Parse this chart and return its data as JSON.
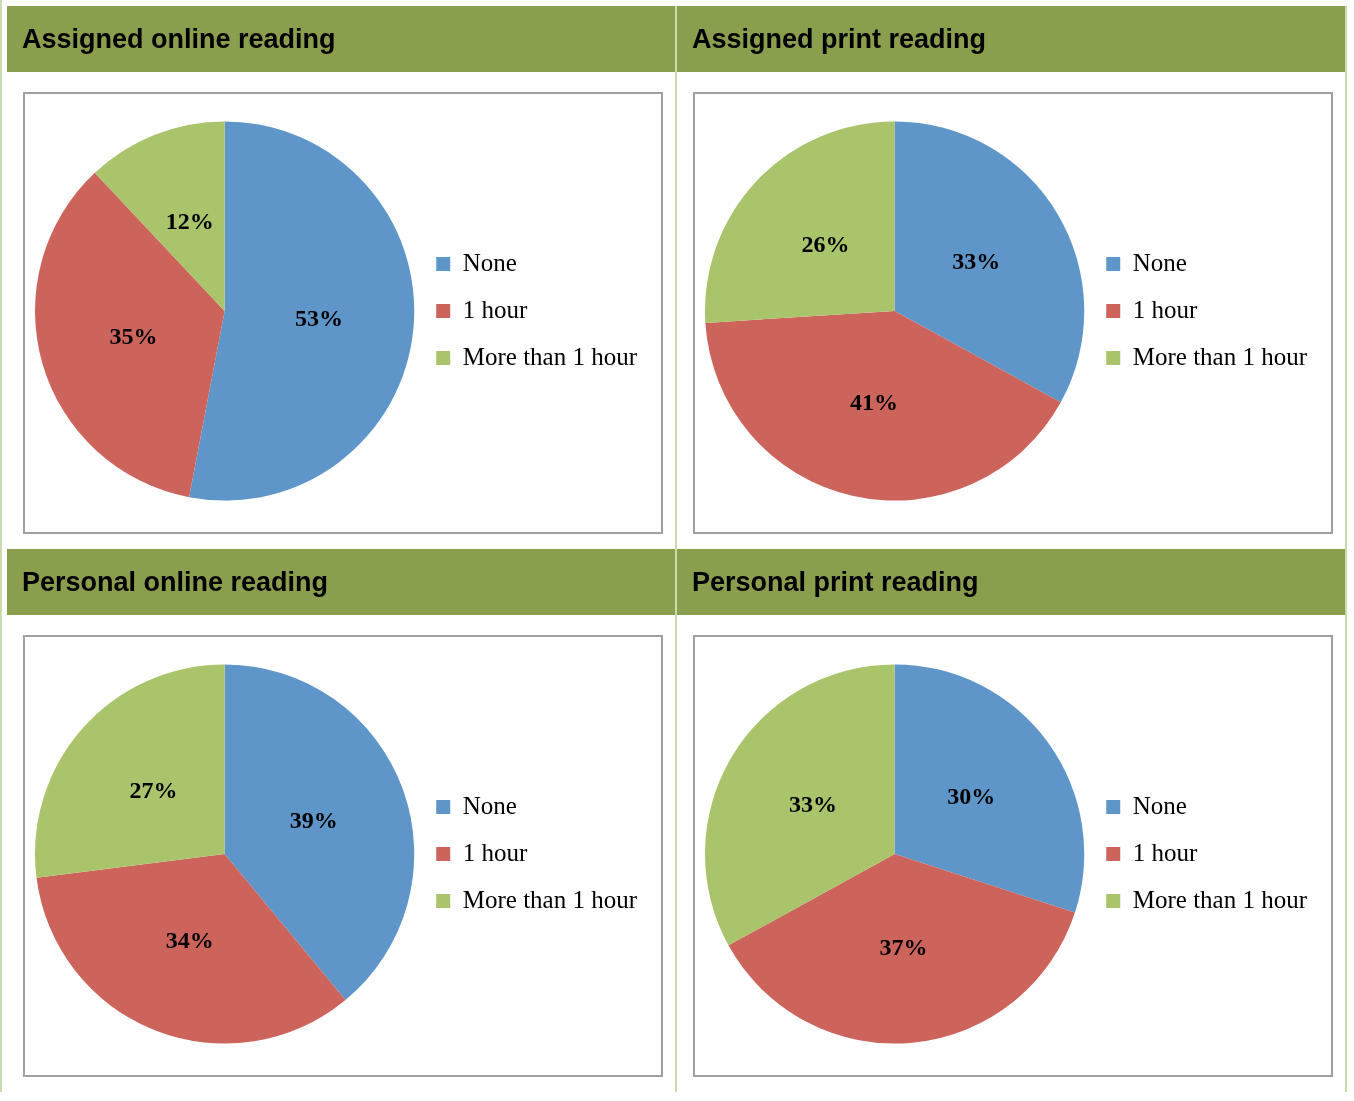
{
  "chart_data": [
    {
      "type": "pie",
      "title": "Assigned online reading",
      "categories": [
        "None",
        "1 hour",
        "More than 1 hour"
      ],
      "values": [
        53,
        35,
        12
      ],
      "value_labels": [
        "53%",
        "35%",
        "12%"
      ],
      "colors": [
        "#5f96c9",
        "#cd645c",
        "#a9c46a"
      ],
      "legend": "right"
    },
    {
      "type": "pie",
      "title": "Assigned print reading",
      "categories": [
        "None",
        "1 hour",
        "More than 1 hour"
      ],
      "values": [
        33,
        41,
        26
      ],
      "value_labels": [
        "33%",
        "41%",
        "26%"
      ],
      "colors": [
        "#5f96c9",
        "#cd645c",
        "#a9c46a"
      ],
      "legend": "right"
    },
    {
      "type": "pie",
      "title": "Personal online reading",
      "categories": [
        "None",
        "1 hour",
        "More than 1 hour"
      ],
      "values": [
        39,
        34,
        27
      ],
      "value_labels": [
        "39%",
        "34%",
        "27%"
      ],
      "colors": [
        "#5f96c9",
        "#cd645c",
        "#a9c46a"
      ],
      "legend": "right"
    },
    {
      "type": "pie",
      "title": "Personal print reading",
      "categories": [
        "None",
        "1 hour",
        "More than 1 hour"
      ],
      "values": [
        30,
        37,
        33
      ],
      "value_labels": [
        "30%",
        "37%",
        "33%"
      ],
      "colors": [
        "#5f96c9",
        "#cd645c",
        "#a9c46a"
      ],
      "legend": "right"
    }
  ]
}
